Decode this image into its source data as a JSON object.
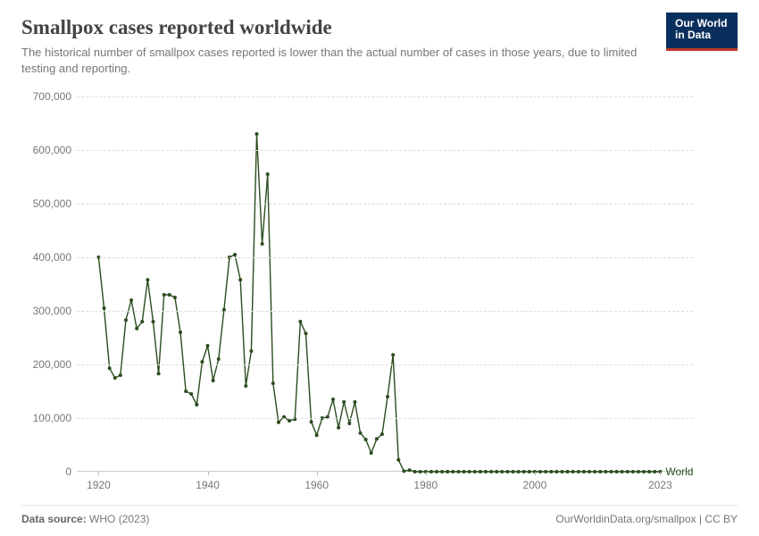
{
  "header": {
    "title": "Smallpox cases reported worldwide",
    "subtitle": "The historical number of smallpox cases reported is lower than the actual number of cases in those years, due to limited testing and reporting.",
    "logo_line1": "Our World",
    "logo_line2": "in Data"
  },
  "chart": {
    "type": "line",
    "series_name": "World",
    "line_color": "#2b4d1f",
    "marker_color": "#2b4d1f",
    "marker_radius": 2.0,
    "line_width": 1.4,
    "background_color": "#ffffff",
    "grid_color": "#dcdcdc",
    "grid_dash": true,
    "axis_font_color": "#777777",
    "axis_font_size": 12,
    "x": {
      "min": 1916,
      "max": 2029,
      "ticks": [
        1920,
        1940,
        1960,
        1980,
        2000,
        2023
      ]
    },
    "y": {
      "min": 0,
      "max": 720000,
      "ticks": [
        0,
        100000,
        200000,
        300000,
        400000,
        500000,
        600000,
        700000
      ],
      "tick_labels": [
        "0",
        "100,000",
        "200,000",
        "300,000",
        "400,000",
        "500,000",
        "600,000",
        "700,000"
      ]
    },
    "data": [
      {
        "year": 1920,
        "value": 400000
      },
      {
        "year": 1921,
        "value": 305000
      },
      {
        "year": 1922,
        "value": 193000
      },
      {
        "year": 1923,
        "value": 175000
      },
      {
        "year": 1924,
        "value": 180000
      },
      {
        "year": 1925,
        "value": 283000
      },
      {
        "year": 1926,
        "value": 320000
      },
      {
        "year": 1927,
        "value": 267000
      },
      {
        "year": 1928,
        "value": 280000
      },
      {
        "year": 1929,
        "value": 358000
      },
      {
        "year": 1930,
        "value": 280000
      },
      {
        "year": 1931,
        "value": 183000
      },
      {
        "year": 1932,
        "value": 330000
      },
      {
        "year": 1933,
        "value": 330000
      },
      {
        "year": 1934,
        "value": 325000
      },
      {
        "year": 1935,
        "value": 260000
      },
      {
        "year": 1936,
        "value": 150000
      },
      {
        "year": 1937,
        "value": 145000
      },
      {
        "year": 1938,
        "value": 125000
      },
      {
        "year": 1939,
        "value": 205000
      },
      {
        "year": 1940,
        "value": 235000
      },
      {
        "year": 1941,
        "value": 170000
      },
      {
        "year": 1942,
        "value": 210000
      },
      {
        "year": 1943,
        "value": 302000
      },
      {
        "year": 1944,
        "value": 400000
      },
      {
        "year": 1945,
        "value": 405000
      },
      {
        "year": 1946,
        "value": 358000
      },
      {
        "year": 1947,
        "value": 160000
      },
      {
        "year": 1948,
        "value": 225000
      },
      {
        "year": 1949,
        "value": 630000
      },
      {
        "year": 1950,
        "value": 425000
      },
      {
        "year": 1951,
        "value": 555000
      },
      {
        "year": 1952,
        "value": 165000
      },
      {
        "year": 1953,
        "value": 92000
      },
      {
        "year": 1954,
        "value": 102000
      },
      {
        "year": 1955,
        "value": 95000
      },
      {
        "year": 1956,
        "value": 98000
      },
      {
        "year": 1957,
        "value": 280000
      },
      {
        "year": 1958,
        "value": 258000
      },
      {
        "year": 1959,
        "value": 93000
      },
      {
        "year": 1960,
        "value": 68000
      },
      {
        "year": 1961,
        "value": 100000
      },
      {
        "year": 1962,
        "value": 102000
      },
      {
        "year": 1963,
        "value": 135000
      },
      {
        "year": 1964,
        "value": 82000
      },
      {
        "year": 1965,
        "value": 130000
      },
      {
        "year": 1966,
        "value": 90000
      },
      {
        "year": 1967,
        "value": 130000
      },
      {
        "year": 1968,
        "value": 72000
      },
      {
        "year": 1969,
        "value": 60000
      },
      {
        "year": 1970,
        "value": 35000
      },
      {
        "year": 1971,
        "value": 61000
      },
      {
        "year": 1972,
        "value": 70000
      },
      {
        "year": 1973,
        "value": 140000
      },
      {
        "year": 1974,
        "value": 218000
      },
      {
        "year": 1975,
        "value": 22000
      },
      {
        "year": 1976,
        "value": 1000
      },
      {
        "year": 1977,
        "value": 3000
      },
      {
        "year": 1978,
        "value": 0
      },
      {
        "year": 1979,
        "value": 0
      },
      {
        "year": 1980,
        "value": 0
      },
      {
        "year": 1981,
        "value": 0
      },
      {
        "year": 1982,
        "value": 0
      },
      {
        "year": 1983,
        "value": 0
      },
      {
        "year": 1984,
        "value": 0
      },
      {
        "year": 1985,
        "value": 0
      },
      {
        "year": 1986,
        "value": 0
      },
      {
        "year": 1987,
        "value": 0
      },
      {
        "year": 1988,
        "value": 0
      },
      {
        "year": 1989,
        "value": 0
      },
      {
        "year": 1990,
        "value": 0
      },
      {
        "year": 1991,
        "value": 0
      },
      {
        "year": 1992,
        "value": 0
      },
      {
        "year": 1993,
        "value": 0
      },
      {
        "year": 1994,
        "value": 0
      },
      {
        "year": 1995,
        "value": 0
      },
      {
        "year": 1996,
        "value": 0
      },
      {
        "year": 1997,
        "value": 0
      },
      {
        "year": 1998,
        "value": 0
      },
      {
        "year": 1999,
        "value": 0
      },
      {
        "year": 2000,
        "value": 0
      },
      {
        "year": 2001,
        "value": 0
      },
      {
        "year": 2002,
        "value": 0
      },
      {
        "year": 2003,
        "value": 0
      },
      {
        "year": 2004,
        "value": 0
      },
      {
        "year": 2005,
        "value": 0
      },
      {
        "year": 2006,
        "value": 0
      },
      {
        "year": 2007,
        "value": 0
      },
      {
        "year": 2008,
        "value": 0
      },
      {
        "year": 2009,
        "value": 0
      },
      {
        "year": 2010,
        "value": 0
      },
      {
        "year": 2011,
        "value": 0
      },
      {
        "year": 2012,
        "value": 0
      },
      {
        "year": 2013,
        "value": 0
      },
      {
        "year": 2014,
        "value": 0
      },
      {
        "year": 2015,
        "value": 0
      },
      {
        "year": 2016,
        "value": 0
      },
      {
        "year": 2017,
        "value": 0
      },
      {
        "year": 2018,
        "value": 0
      },
      {
        "year": 2019,
        "value": 0
      },
      {
        "year": 2020,
        "value": 0
      },
      {
        "year": 2021,
        "value": 0
      },
      {
        "year": 2022,
        "value": 0
      },
      {
        "year": 2023,
        "value": 0
      }
    ]
  },
  "footer": {
    "source_label": "Data source:",
    "source_value": "WHO (2023)",
    "attribution": "OurWorldinData.org/smallpox | CC BY"
  }
}
